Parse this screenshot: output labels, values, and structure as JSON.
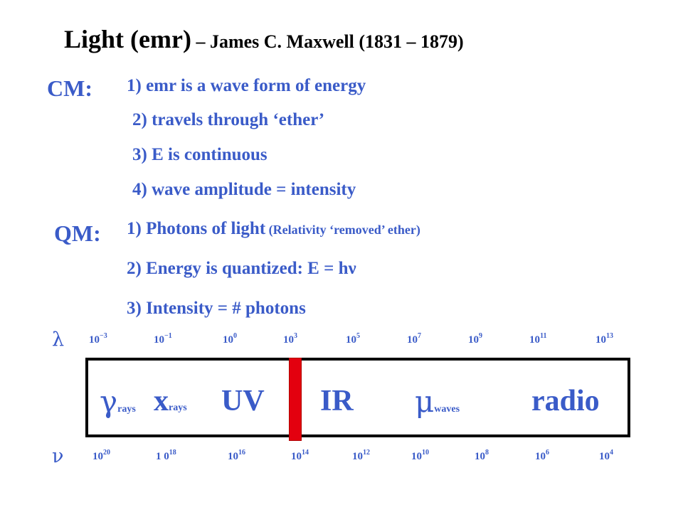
{
  "title": {
    "main": "Light (emr)",
    "sub": " – James C. Maxwell (1831 – 1879)"
  },
  "cm": {
    "label": "CM:",
    "items": [
      "1) emr is a wave form of energy",
      "2) travels through ‘ether’",
      "3) E is continuous",
      "4) wave amplitude = intensity"
    ]
  },
  "qm": {
    "label": "QM:",
    "item1_main": "1) Photons of light",
    "item1_note": " (Relativity ‘removed’ ether)",
    "item2": "2) Energy is quantized:   E = hν",
    "item3": "3) Intensity = # photons"
  },
  "wavelength": {
    "symbol": "λ",
    "ticks": [
      {
        "base": "10",
        "exp": "−3"
      },
      {
        "base": "10",
        "exp": "−1"
      },
      {
        "base": "10",
        "exp": "0"
      },
      {
        "base": "10",
        "exp": "3"
      },
      {
        "base": "10",
        "exp": "5"
      },
      {
        "base": "10",
        "exp": "7"
      },
      {
        "base": "10",
        "exp": "9"
      },
      {
        "base": "10",
        "exp": "11"
      },
      {
        "base": "10",
        "exp": "13"
      }
    ]
  },
  "frequency": {
    "symbol": "ν",
    "ticks": [
      {
        "base": "10",
        "exp": "20"
      },
      {
        "base": "1 0",
        "exp": "18"
      },
      {
        "base": "10",
        "exp": "16"
      },
      {
        "base": "10",
        "exp": "14"
      },
      {
        "base": "10",
        "exp": "12"
      },
      {
        "base": "10",
        "exp": "10"
      },
      {
        "base": "10",
        "exp": "8"
      },
      {
        "base": "10",
        "exp": "6"
      },
      {
        "base": "10",
        "exp": "4"
      }
    ]
  },
  "spectrum": {
    "gamma_symbol": "γ",
    "gamma_sub": "rays",
    "x_symbol": "x",
    "x_sub": "rays",
    "uv": "UV",
    "ir": "IR",
    "micro_symbol": "μ",
    "micro_sub": "waves",
    "radio": "radio"
  },
  "colors": {
    "text_blue": "#3a5bc8",
    "visible_bar": "#e3000f"
  }
}
